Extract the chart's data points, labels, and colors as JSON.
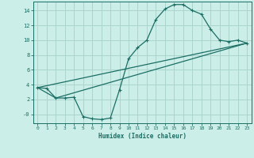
{
  "xlabel": "Humidex (Indice chaleur)",
  "bg_color": "#cceee8",
  "grid_color": "#aad4cc",
  "line_color": "#1a6e64",
  "xlim": [
    -0.5,
    23.5
  ],
  "ylim": [
    -1.2,
    15.2
  ],
  "xticks": [
    0,
    1,
    2,
    3,
    4,
    5,
    6,
    7,
    8,
    9,
    10,
    11,
    12,
    13,
    14,
    15,
    16,
    17,
    18,
    19,
    20,
    21,
    22,
    23
  ],
  "yticks": [
    0,
    2,
    4,
    6,
    8,
    10,
    12,
    14
  ],
  "ytick_labels": [
    "-0",
    "2",
    "4",
    "6",
    "8",
    "10",
    "12",
    "14"
  ],
  "curve1_x": [
    0,
    1,
    2,
    3,
    4,
    5,
    6,
    7,
    8,
    9,
    10,
    11,
    12,
    13,
    14,
    15,
    16,
    17,
    18,
    19,
    20,
    21,
    22,
    23
  ],
  "curve1_y": [
    3.6,
    3.5,
    2.2,
    2.2,
    2.3,
    -0.3,
    -0.6,
    -0.7,
    -0.5,
    3.3,
    7.5,
    9.0,
    10.0,
    12.8,
    14.2,
    14.8,
    14.8,
    14.0,
    13.5,
    11.5,
    10.0,
    9.8,
    10.0,
    9.6
  ],
  "line1_x": [
    0,
    23
  ],
  "line1_y": [
    3.6,
    9.6
  ],
  "line2_x": [
    0,
    2,
    23
  ],
  "line2_y": [
    3.6,
    2.2,
    9.6
  ]
}
